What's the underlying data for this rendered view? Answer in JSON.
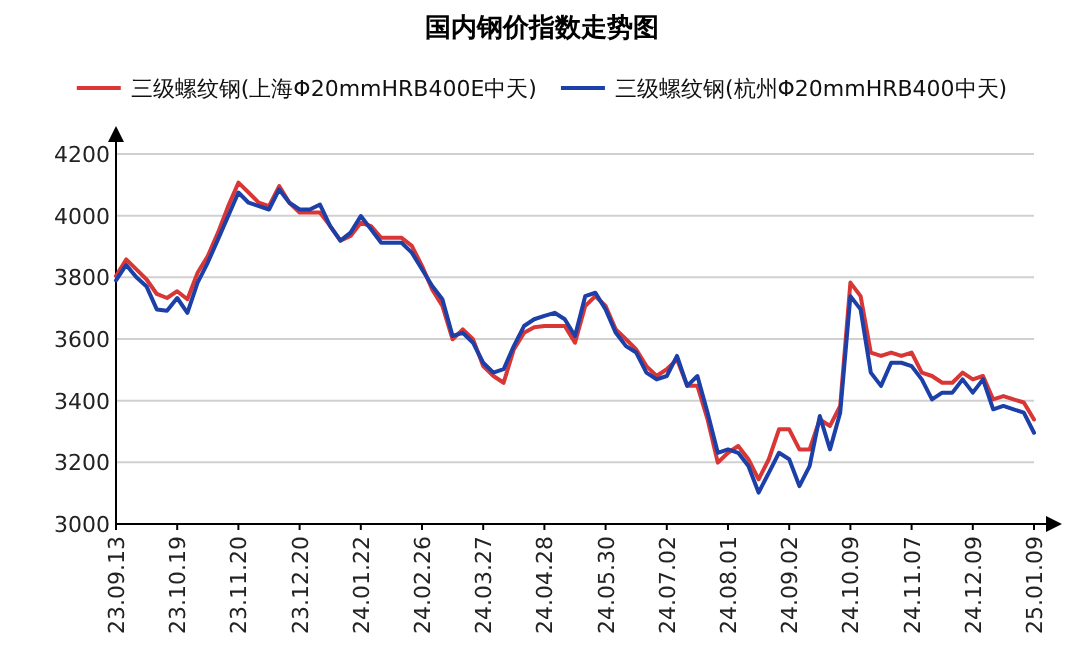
{
  "chart_data": {
    "type": "line",
    "title": "国内钢价指数走势图",
    "categories": [
      "23.09.13",
      null,
      null,
      null,
      null,
      null,
      "23.10.19",
      null,
      null,
      null,
      null,
      null,
      "23.11.20",
      null,
      null,
      null,
      null,
      null,
      "23.12.20",
      null,
      null,
      null,
      null,
      null,
      "24.01.22",
      null,
      null,
      null,
      null,
      null,
      "24.02.26",
      null,
      null,
      null,
      null,
      null,
      "24.03.27",
      null,
      null,
      null,
      null,
      null,
      "24.04.28",
      null,
      null,
      null,
      null,
      null,
      "24.05.30",
      null,
      null,
      null,
      null,
      null,
      "24.07.02",
      null,
      null,
      null,
      null,
      null,
      "24.08.01",
      null,
      null,
      null,
      null,
      null,
      "24.09.02",
      null,
      null,
      null,
      null,
      null,
      "24.10.09",
      null,
      null,
      null,
      null,
      null,
      "24.11.07",
      null,
      null,
      null,
      null,
      null,
      "24.12.09",
      null,
      null,
      null,
      null,
      null,
      "25.01.09"
    ],
    "series": [
      {
        "name": "三级螺纹钢(上海Φ20mmHRB400E中天)",
        "color": "#d93636",
        "values": [
          3804,
          3858,
          3826,
          3793,
          3746,
          3733,
          3755,
          3729,
          3815,
          3869,
          3945,
          4031,
          4107,
          4075,
          4042,
          4031,
          4096,
          4042,
          4010,
          4010,
          4010,
          3966,
          3919,
          3934,
          3977,
          3966,
          3928,
          3928,
          3928,
          3902,
          3837,
          3761,
          3707,
          3599,
          3631,
          3599,
          3512,
          3480,
          3458,
          3566,
          3620,
          3638,
          3642,
          3642,
          3642,
          3588,
          3707,
          3739,
          3707,
          3631,
          3599,
          3566,
          3512,
          3480,
          3502,
          3534,
          3448,
          3448,
          3339,
          3199,
          3231,
          3253,
          3210,
          3145,
          3210,
          3307,
          3307,
          3242,
          3242,
          3339,
          3318,
          3383,
          3783,
          3739,
          3556,
          3545,
          3556,
          3545,
          3556,
          3491,
          3480,
          3458,
          3458,
          3491,
          3469,
          3480,
          3404,
          3415,
          3404,
          3394,
          3339
        ]
      },
      {
        "name": "三级螺纹钢(杭州Φ20mmHRB400中天)",
        "color": "#1c40a8",
        "values": [
          3790,
          3840,
          3800,
          3770,
          3696,
          3692,
          3733,
          3685,
          3783,
          3848,
          3923,
          3999,
          4075,
          4042,
          4031,
          4020,
          4085,
          4042,
          4020,
          4020,
          4036,
          3966,
          3919,
          3945,
          3999,
          3956,
          3912,
          3912,
          3912,
          3880,
          3826,
          3772,
          3729,
          3610,
          3620,
          3588,
          3523,
          3491,
          3502,
          3577,
          3642,
          3664,
          3675,
          3685,
          3664,
          3610,
          3739,
          3750,
          3696,
          3620,
          3577,
          3556,
          3491,
          3469,
          3480,
          3545,
          3448,
          3480,
          3361,
          3231,
          3242,
          3231,
          3188,
          3102,
          3166,
          3231,
          3210,
          3123,
          3188,
          3350,
          3242,
          3361,
          3739,
          3696,
          3491,
          3448,
          3523,
          3523,
          3512,
          3469,
          3404,
          3426,
          3426,
          3469,
          3426,
          3469,
          3372,
          3383,
          3372,
          3361,
          3296
        ]
      }
    ],
    "ylim": [
      3000,
      4200
    ],
    "yticks": [
      3000,
      3200,
      3400,
      3600,
      3800,
      4000,
      4200
    ],
    "grid": "y",
    "legend": "top",
    "marker": "none",
    "line_style": "solid"
  }
}
